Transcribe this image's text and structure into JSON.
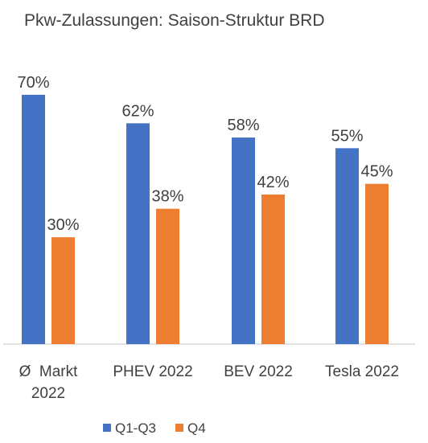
{
  "chart_data": {
    "type": "bar",
    "title": "Pkw-Zulassungen: Saison-Struktur BRD",
    "categories": [
      [
        "Ø  Markt",
        "2022"
      ],
      [
        "PHEV 2022"
      ],
      [
        "BEV 2022"
      ],
      [
        "Tesla 2022"
      ]
    ],
    "series": [
      {
        "name": "Q1-Q3",
        "color": "#4472C4",
        "values": [
          70,
          62,
          58,
          55
        ],
        "labels": [
          "70%",
          "62%",
          "58%",
          "55%"
        ]
      },
      {
        "name": "Q4",
        "color": "#ED7D31",
        "values": [
          30,
          38,
          42,
          45
        ],
        "labels": [
          "30%",
          "38%",
          "42%",
          "45%"
        ]
      }
    ],
    "ylim": [
      0,
      100
    ],
    "unit": "%",
    "grid": false,
    "legend": "bottom-center",
    "xlabel": "",
    "ylabel": ""
  }
}
